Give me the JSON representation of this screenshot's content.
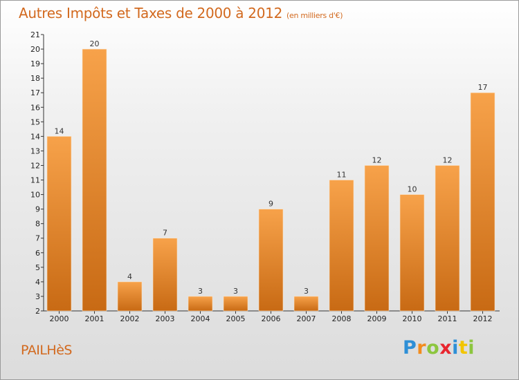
{
  "title": "Autres Impôts et Taxes de 2000 à 2012",
  "subtitle": "(en milliers d'€)",
  "town": "PAILHèS",
  "brand": {
    "letters": [
      "P",
      "r",
      "o",
      "x",
      "i",
      "t",
      "i"
    ],
    "colors": [
      "#2e8fd6",
      "#f28c1e",
      "#8cc63f",
      "#e8262f",
      "#2e8fd6",
      "#f2c500",
      "#8cc63f"
    ]
  },
  "colors": {
    "title": "#d2691e",
    "bar_top": "#f7a24a",
    "bar_bottom": "#c86a14"
  },
  "chart_data": {
    "type": "bar",
    "categories": [
      "2000",
      "2001",
      "2002",
      "2003",
      "2004",
      "2005",
      "2006",
      "2007",
      "2008",
      "2009",
      "2010",
      "2011",
      "2012"
    ],
    "values": [
      14,
      20,
      4,
      7,
      3,
      3,
      9,
      3,
      11,
      12,
      10,
      12,
      17
    ],
    "yticks": [
      2,
      3,
      4,
      5,
      6,
      7,
      8,
      9,
      10,
      11,
      12,
      13,
      14,
      15,
      16,
      17,
      18,
      19,
      20,
      21
    ],
    "ylim": [
      2,
      21
    ],
    "grid": false,
    "legend": "none"
  }
}
